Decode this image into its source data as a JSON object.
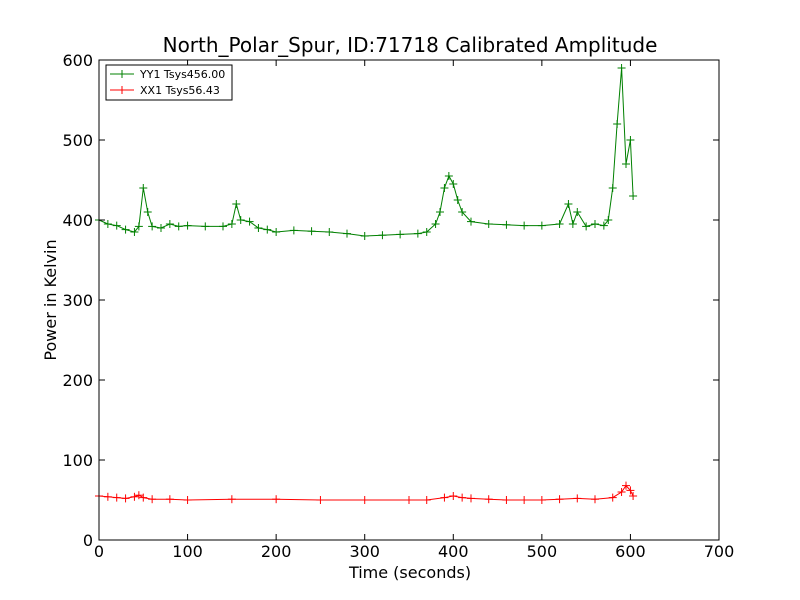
{
  "chart_data": {
    "type": "line",
    "title": "North_Polar_Spur, ID:71718 Calibrated Amplitude",
    "xlabel": "Time (seconds)",
    "ylabel": "Power in Kelvin",
    "xlim": [
      0,
      700
    ],
    "ylim": [
      0,
      600
    ],
    "xticks": [
      "0",
      "100",
      "200",
      "300",
      "400",
      "500",
      "600",
      "700"
    ],
    "yticks": [
      "0",
      "100",
      "200",
      "300",
      "400",
      "500",
      "600"
    ],
    "grid": false,
    "legend_position": "top-left",
    "series": [
      {
        "name": "YY1 Tsys456.00",
        "color": "#008000",
        "marker": "+",
        "x": [
          0,
          10,
          20,
          30,
          40,
          45,
          50,
          55,
          60,
          70,
          80,
          90,
          100,
          120,
          140,
          150,
          155,
          160,
          170,
          180,
          190,
          200,
          220,
          240,
          260,
          280,
          300,
          320,
          340,
          360,
          370,
          380,
          385,
          390,
          395,
          400,
          405,
          410,
          420,
          440,
          460,
          480,
          500,
          520,
          530,
          535,
          540,
          550,
          560,
          570,
          575,
          580,
          585,
          590,
          595,
          600,
          603
        ],
        "values": [
          400,
          395,
          393,
          388,
          385,
          392,
          440,
          410,
          392,
          390,
          395,
          392,
          393,
          392,
          392,
          395,
          420,
          400,
          398,
          390,
          388,
          385,
          387,
          386,
          385,
          383,
          380,
          381,
          382,
          383,
          385,
          395,
          410,
          440,
          455,
          445,
          425,
          410,
          398,
          395,
          394,
          393,
          393,
          395,
          420,
          395,
          410,
          392,
          395,
          393,
          400,
          440,
          520,
          590,
          470,
          500,
          430
        ]
      },
      {
        "name": "XX1 Tsys56.43",
        "color": "#ff0000",
        "marker": "+",
        "x": [
          0,
          10,
          20,
          30,
          40,
          45,
          50,
          60,
          80,
          100,
          150,
          200,
          250,
          300,
          350,
          370,
          390,
          400,
          410,
          420,
          440,
          460,
          480,
          500,
          520,
          540,
          560,
          580,
          590,
          595,
          600,
          603
        ],
        "values": [
          55,
          54,
          53,
          52,
          54,
          56,
          53,
          51,
          51,
          50,
          51,
          51,
          50,
          50,
          50,
          50,
          53,
          55,
          53,
          52,
          51,
          50,
          50,
          50,
          51,
          52,
          51,
          53,
          60,
          68,
          62,
          55
        ]
      }
    ]
  }
}
